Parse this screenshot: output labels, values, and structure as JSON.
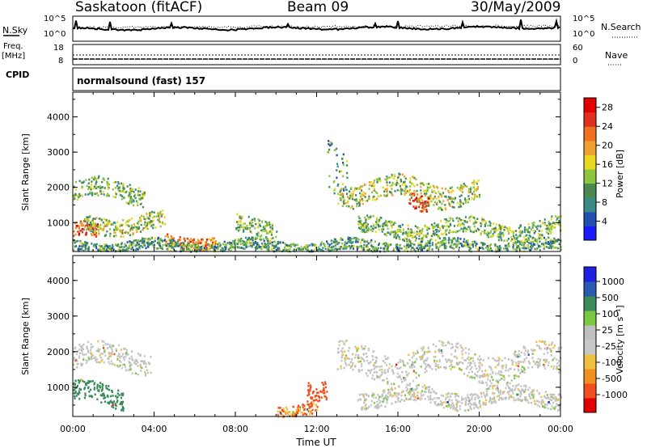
{
  "header": {
    "station": "Saskatoon (fitACF)",
    "beam": "Beam 09",
    "date": "30/May/2009"
  },
  "sky_panel": {
    "left_label": "N.Sky",
    "right_label": "N.Search",
    "y_top_tick": "10^5",
    "y_bottom_tick": "10^0",
    "r_top_tick": "10^5",
    "r_bottom_tick": "10^0"
  },
  "freq_panel": {
    "left_label_1": "Freq.",
    "left_label_2": "[MHz]",
    "right_label": "Nave",
    "y_top_tick": "18",
    "y_bottom_tick": "8",
    "r_top_tick": "60",
    "r_bottom_tick": "0"
  },
  "cpid_panel": {
    "label": "CPID",
    "mode": "normalsound (fast) 157"
  },
  "colors": {
    "power_scale": [
      "#1a1aff",
      "#2050b0",
      "#3a8a86",
      "#4a8a50",
      "#8cc63f",
      "#e8d820",
      "#f0a030",
      "#f07020",
      "#e03020",
      "#e00000"
    ],
    "velocity_scale": [
      "#2020e0",
      "#2a5ab0",
      "#3a8a5a",
      "#7cc840",
      "#c0c0c0",
      "#c8c8c8",
      "#f0c040",
      "#f09020",
      "#f05020",
      "#e00000"
    ]
  },
  "chart_data": [
    {
      "type": "heatmap",
      "title": "",
      "xlabel": "Time UT",
      "ylabel": "Slant Range [km]",
      "xlim": [
        "00:00",
        "24:00"
      ],
      "ylim": [
        180,
        4700
      ],
      "x_tick_labels": [
        "00:00",
        "04:00",
        "08:00",
        "12:00",
        "16:00",
        "20:00",
        "00:00"
      ],
      "y_tick_values": [
        1000,
        2000,
        3000,
        4000
      ],
      "colorbar": {
        "label": "Power [dB]",
        "ticks": [
          4,
          8,
          12,
          16,
          20,
          24,
          28
        ],
        "range": [
          0,
          30
        ]
      },
      "features": [
        {
          "t_start": 0.0,
          "t_end": 3.5,
          "range_center": 1900,
          "range_width": 350,
          "level": 12
        },
        {
          "t_start": 0.0,
          "t_end": 1.2,
          "range_center": 750,
          "range_width": 250,
          "level": 24
        },
        {
          "t_start": 0.5,
          "t_end": 4.5,
          "range_center": 1000,
          "range_width": 300,
          "level": 14
        },
        {
          "t_start": 4.5,
          "t_end": 7.0,
          "range_center": 500,
          "range_width": 200,
          "level": 22
        },
        {
          "t_start": 8.0,
          "t_end": 10.0,
          "range_center": 900,
          "range_width": 300,
          "level": 12
        },
        {
          "t_start": 12.5,
          "t_end": 13.5,
          "range_center": 2400,
          "range_width": 900,
          "level": 10
        },
        {
          "t_start": 13.0,
          "t_end": 20.0,
          "range_center": 1900,
          "range_width": 400,
          "level": 14
        },
        {
          "t_start": 16.5,
          "t_end": 17.5,
          "range_center": 1700,
          "range_width": 300,
          "level": 24
        },
        {
          "t_start": 14.0,
          "t_end": 24.0,
          "range_center": 850,
          "range_width": 300,
          "level": 12
        },
        {
          "t_start": 0.0,
          "t_end": 24.0,
          "range_center": 350,
          "range_width": 200,
          "level": 10
        }
      ]
    },
    {
      "type": "heatmap",
      "title": "",
      "xlabel": "Time UT",
      "ylabel": "Slant Range [km]",
      "xlim": [
        "00:00",
        "24:00"
      ],
      "ylim": [
        180,
        4700
      ],
      "x_tick_labels": [
        "00:00",
        "04:00",
        "08:00",
        "12:00",
        "16:00",
        "20:00",
        "00:00"
      ],
      "y_tick_values": [
        1000,
        2000,
        3000,
        4000
      ],
      "colorbar": {
        "label": "Velocity [m s⁻¹]",
        "ticks": [
          1000,
          500,
          100,
          25,
          -25,
          -100,
          -500,
          -1000
        ]
      },
      "features": [
        {
          "t_start": 0.0,
          "t_end": 3.8,
          "range_center": 1850,
          "range_width": 400,
          "velocity": 0
        },
        {
          "t_start": 0.0,
          "t_end": 2.5,
          "range_center": 800,
          "range_width": 350,
          "velocity": 150
        },
        {
          "t_start": 11.5,
          "t_end": 12.5,
          "range_center": 1050,
          "range_width": 350,
          "velocity": -400
        },
        {
          "t_start": 13.0,
          "t_end": 24.0,
          "range_center": 1700,
          "range_width": 500,
          "velocity": 0
        },
        {
          "t_start": 10.0,
          "t_end": 12.0,
          "range_center": 400,
          "range_width": 200,
          "velocity": -100
        },
        {
          "t_start": 14.0,
          "t_end": 24.0,
          "range_center": 750,
          "range_width": 300,
          "velocity": 0
        }
      ]
    }
  ]
}
